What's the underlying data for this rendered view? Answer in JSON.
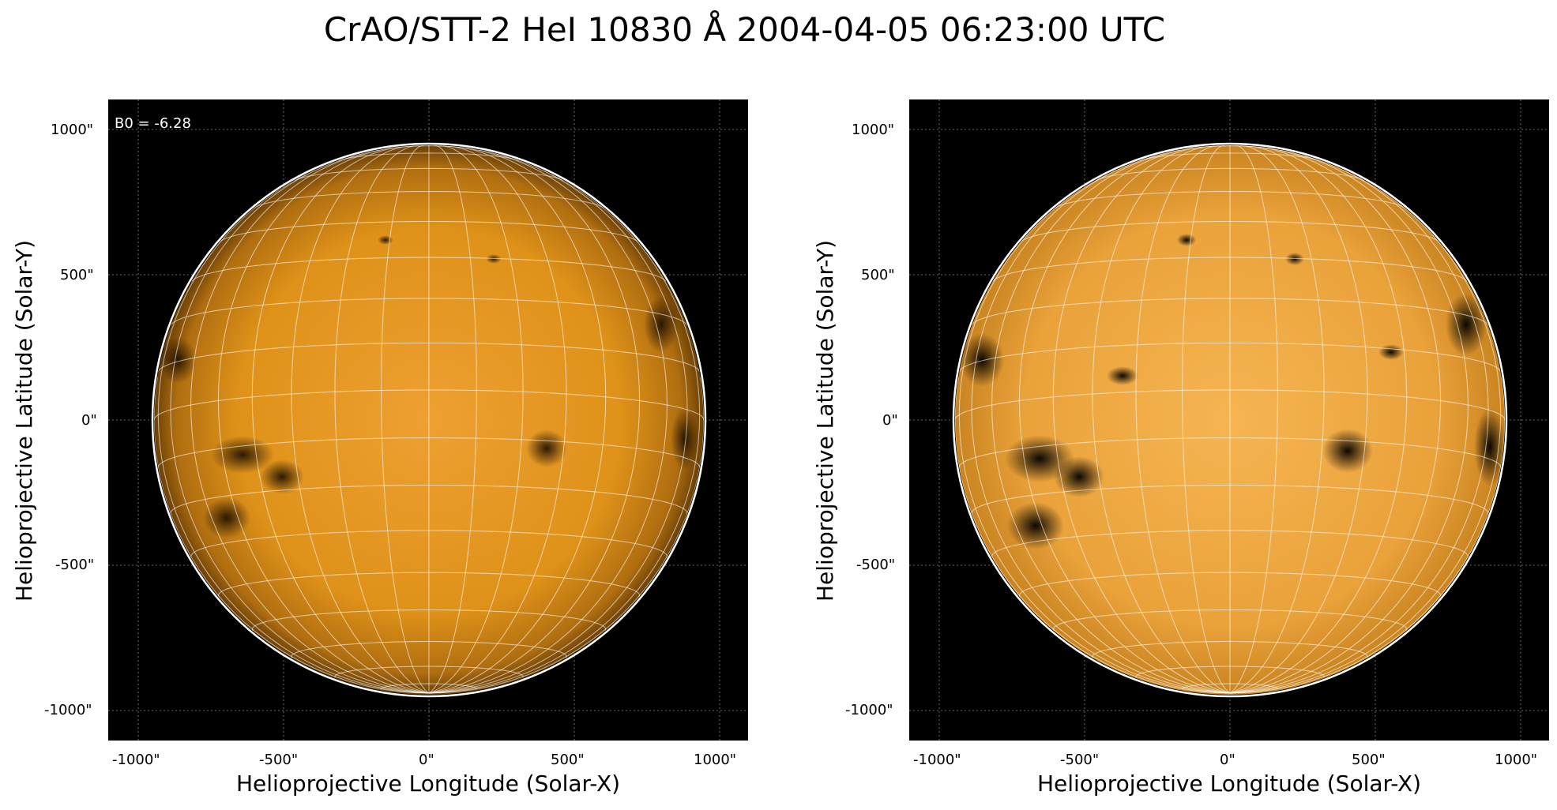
{
  "figure": {
    "title": "CrAO/STT-2 HeI 10830 Å 2004-04-05 06:23:00 UTC"
  },
  "panels": [
    {
      "annotation": "B0 = -6.28",
      "xlabel": "Helioprojective Longitude (Solar-X)",
      "ylabel": "Helioprojective Latitude (Solar-Y)",
      "x_ticks": [
        "-1000\"",
        "-500\"",
        "0\"",
        "500\"",
        "1000\""
      ],
      "y_ticks": [
        "1000\"",
        "500\"",
        "0\"",
        "-500\"",
        "-1000\""
      ],
      "contrast": "low"
    },
    {
      "annotation": "",
      "xlabel": "Helioprojective Longitude (Solar-X)",
      "ylabel": "Helioprojective Latitude (Solar-Y)",
      "x_ticks": [
        "-1000\"",
        "-500\"",
        "0\"",
        "500\"",
        "1000\""
      ],
      "y_ticks": [
        "1000\"",
        "500\"",
        "0\"",
        "-500\"",
        "-1000\""
      ],
      "contrast": "high"
    }
  ],
  "colors": {
    "background": "#000000",
    "disk": "#e2961a",
    "grid": "#ffffff"
  }
}
